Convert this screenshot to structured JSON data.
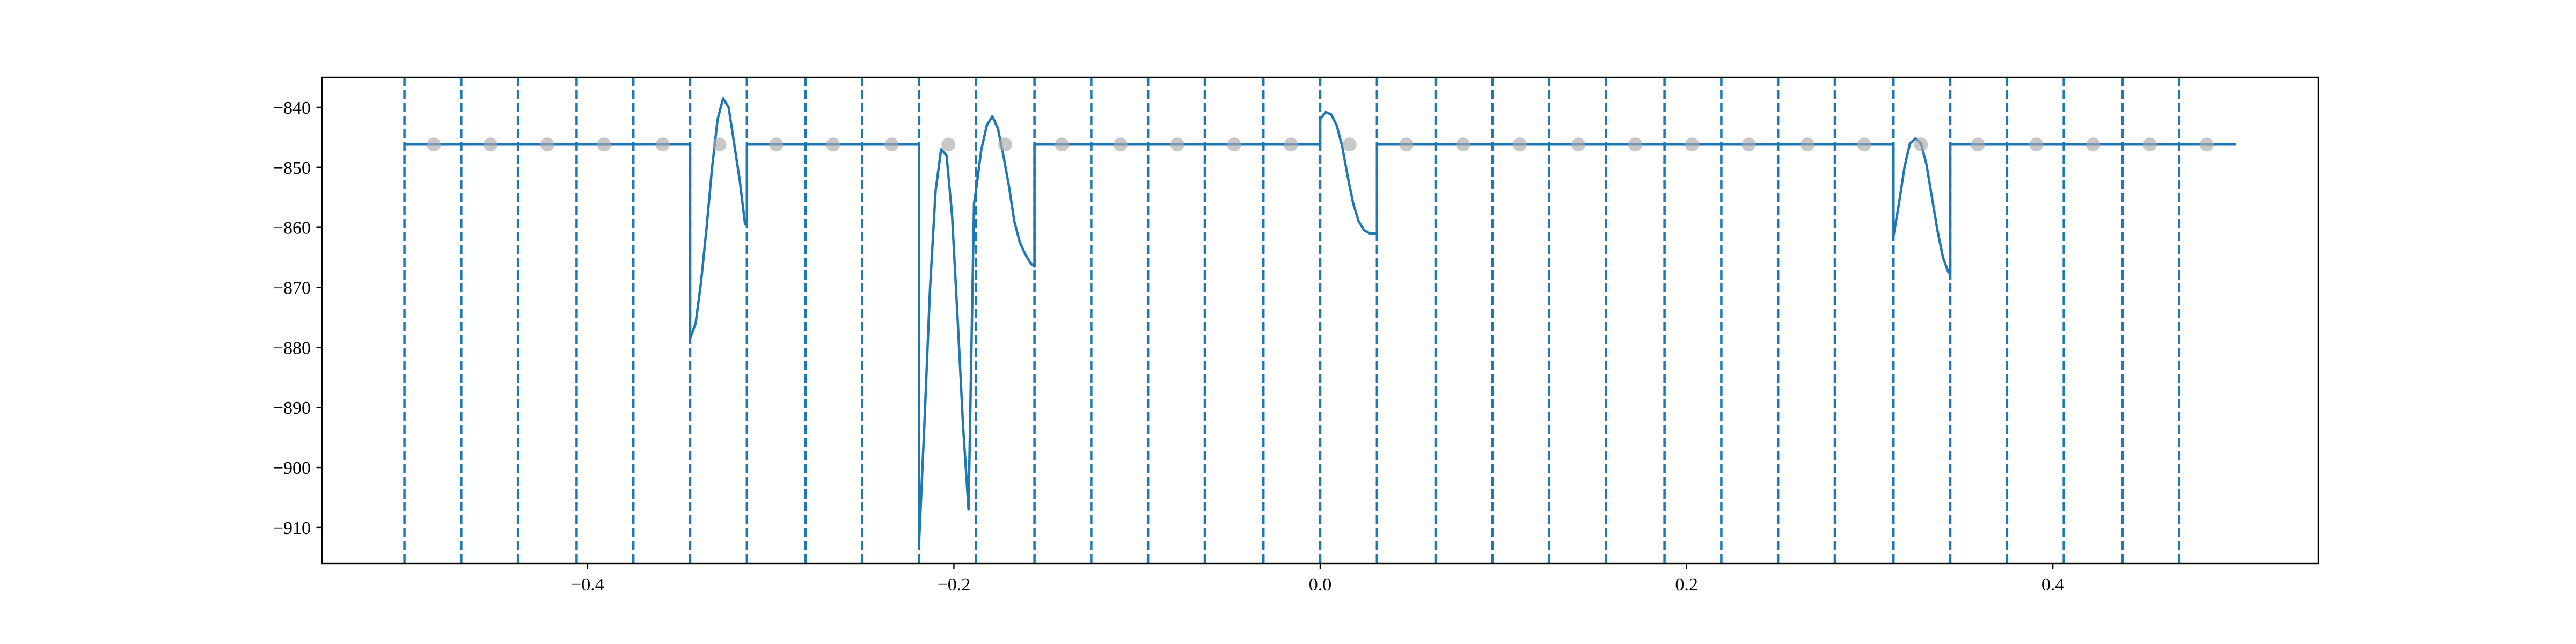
{
  "chart_data": {
    "type": "line",
    "title": "",
    "xlabel": "",
    "ylabel": "",
    "xlim": [
      -0.545,
      0.545
    ],
    "ylim": [
      -916,
      -835
    ],
    "grid": false,
    "x_ticks": [
      -0.4,
      -0.2,
      0.0,
      0.2,
      0.4
    ],
    "x_tick_labels": [
      "−0.4",
      "−0.2",
      "0.0",
      "0.2",
      "0.4"
    ],
    "y_ticks": [
      -840,
      -850,
      -860,
      -870,
      -880,
      -890,
      -900,
      -910
    ],
    "y_tick_labels": [
      "−840",
      "−850",
      "−860",
      "−870",
      "−880",
      "−890",
      "−900",
      "−910"
    ],
    "colors": {
      "line": "#1f77b4",
      "dashed": "#1f77b4",
      "markers": "#aaaaaa"
    },
    "vertical_dashed_lines_x": [
      -0.5,
      -0.469,
      -0.438,
      -0.406,
      -0.375,
      -0.344,
      -0.313,
      -0.281,
      -0.25,
      -0.219,
      -0.188,
      -0.156,
      -0.125,
      -0.094,
      -0.063,
      -0.031,
      0.0,
      0.031,
      0.063,
      0.094,
      0.125,
      0.156,
      0.188,
      0.219,
      0.25,
      0.281,
      0.313,
      0.344,
      0.375,
      0.406,
      0.438,
      0.469
    ],
    "markers": {
      "x": [
        -0.484,
        -0.453,
        -0.422,
        -0.391,
        -0.359,
        -0.328,
        -0.297,
        -0.266,
        -0.234,
        -0.203,
        -0.172,
        -0.141,
        -0.109,
        -0.078,
        -0.047,
        -0.016,
        0.016,
        0.047,
        0.078,
        0.109,
        0.141,
        0.172,
        0.203,
        0.234,
        0.266,
        0.297,
        0.328,
        0.359,
        0.391,
        0.422,
        0.453,
        0.484
      ],
      "y": -846.2
    },
    "series": [
      {
        "x": [
          -0.5,
          -0.344,
          -0.344,
          -0.341,
          -0.338,
          -0.335,
          -0.332,
          -0.329,
          -0.326,
          -0.323,
          -0.32,
          -0.317,
          -0.314,
          -0.313,
          -0.313,
          -0.219,
          -0.219,
          -0.216,
          -0.213,
          -0.21,
          -0.207,
          -0.204,
          -0.201,
          -0.198,
          -0.195,
          -0.192,
          -0.189,
          -0.188,
          -0.188,
          -0.185,
          -0.182,
          -0.179,
          -0.176,
          -0.173,
          -0.17,
          -0.167,
          -0.164,
          -0.161,
          -0.158,
          -0.156,
          -0.156,
          0.0,
          0.0,
          0.003,
          0.006,
          0.009,
          0.012,
          0.015,
          0.018,
          0.021,
          0.024,
          0.027,
          0.03,
          0.031,
          0.031,
          0.313,
          0.313,
          0.316,
          0.319,
          0.322,
          0.325,
          0.328,
          0.331,
          0.334,
          0.337,
          0.34,
          0.343,
          0.344,
          0.344,
          0.5
        ],
        "y": [
          -846.2,
          -846.2,
          -878.5,
          -876.0,
          -869.0,
          -860.0,
          -850.0,
          -842.0,
          -838.5,
          -840.0,
          -846.0,
          -852.0,
          -859.5,
          -859.5,
          -846.2,
          -846.2,
          -912.5,
          -892.0,
          -870.0,
          -854.0,
          -847.0,
          -848.0,
          -858.0,
          -875.0,
          -893.0,
          -907.0,
          -856.0,
          -854.0,
          -854.0,
          -847.0,
          -843.0,
          -841.5,
          -843.5,
          -848.0,
          -853.0,
          -859.0,
          -862.5,
          -864.5,
          -866.0,
          -866.5,
          -846.2,
          -846.2,
          -842.0,
          -840.8,
          -841.2,
          -843.0,
          -846.5,
          -851.5,
          -856.0,
          -859.0,
          -860.5,
          -861.0,
          -861.0,
          -861.0,
          -846.2,
          -846.2,
          -861.5,
          -856.0,
          -850.0,
          -846.0,
          -845.2,
          -846.0,
          -849.5,
          -855.0,
          -860.5,
          -865.0,
          -867.5,
          -867.5,
          -846.2,
          -846.2
        ]
      }
    ]
  }
}
